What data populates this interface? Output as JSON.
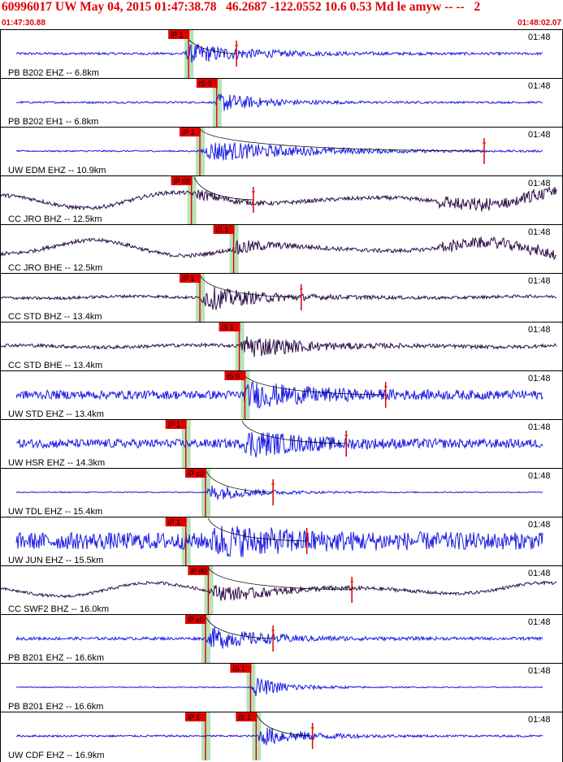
{
  "header": {
    "title": "60996017 UW May 04, 2015 01:47:38.78   46.2687 -122.0552 10.6 0.53 Md le amyw -- --   2",
    "start_time": "01:47:30.88",
    "end_time": "01:48:02.07"
  },
  "colors": {
    "header_text": "#e00000",
    "trace_blue": "#1a1ae6",
    "trace_purple": "#2e0f4a",
    "pick": "#e00000",
    "pick_window": "#9fd89f",
    "separator": "#000000"
  },
  "chart_data": {
    "type": "seismogram",
    "x_range": [
      "01:47:30.88",
      "01:48:02.07"
    ],
    "minute_label": "01:48",
    "traces": [
      {
        "label": "PB B202 EHZ -- 6.8km",
        "color": "blue",
        "picks": [
          {
            "label": "iP 1",
            "kind": "P",
            "t": 0.335
          }
        ],
        "coda_end": 0.42,
        "arrival": 0.325,
        "duration": 0.35,
        "amp": 0.45,
        "noise": 0.05,
        "lf": 0,
        "hf": 0
      },
      {
        "label": "PB B202 EH1 -- 6.8km",
        "color": "blue",
        "picks": [
          {
            "label": "iS 0",
            "kind": "S",
            "t": 0.385
          }
        ],
        "coda_end": null,
        "arrival": 0.38,
        "duration": 0.25,
        "amp": 0.45,
        "noise": 0.04,
        "lf": 0,
        "hf": 0
      },
      {
        "label": "UW EDM EHZ -- 10.9km",
        "color": "blue",
        "picks": [
          {
            "label": "iP 1",
            "kind": "P",
            "t": 0.355
          }
        ],
        "coda_end": 0.86,
        "arrival": 0.355,
        "duration": 0.5,
        "amp": 0.5,
        "noise": 0.03,
        "lf": 0,
        "hf": 0
      },
      {
        "label": "CC JRO BHZ -- 12.5km",
        "color": "purple",
        "picks": [
          {
            "label": "iP c0",
            "kind": "P",
            "t": 0.34
          }
        ],
        "coda_end": 0.45,
        "arrival": 0.345,
        "duration": 0.15,
        "amp": 0.2,
        "noise": 0.08,
        "lf": 0.35,
        "hf": 0.25
      },
      {
        "label": "CC JRO BHE -- 12.5km",
        "color": "purple",
        "picks": [
          {
            "label": "iS 1",
            "kind": "S",
            "t": 0.415
          }
        ],
        "coda_end": null,
        "arrival": 0.415,
        "duration": 0.15,
        "amp": 0.35,
        "noise": 0.08,
        "lf": 0.35,
        "hf": 0.2
      },
      {
        "label": "CC STD BHZ -- 13.4km",
        "color": "purple",
        "picks": [
          {
            "label": "iP 1",
            "kind": "P",
            "t": 0.355
          }
        ],
        "coda_end": 0.535,
        "arrival": 0.355,
        "duration": 0.3,
        "amp": 0.55,
        "noise": 0.06,
        "lf": 0.05,
        "hf": 0
      },
      {
        "label": "CC STD BHE -- 13.4km",
        "color": "purple",
        "picks": [
          {
            "label": "iS 1",
            "kind": "S",
            "t": 0.425
          }
        ],
        "coda_end": null,
        "arrival": 0.425,
        "duration": 0.3,
        "amp": 0.55,
        "noise": 0.07,
        "lf": 0.05,
        "hf": 0
      },
      {
        "label": "UW STD EHZ -- 13.4km",
        "color": "blue",
        "picks": [
          {
            "label": "iS 0",
            "kind": "S",
            "t": 0.435
          }
        ],
        "coda_end": 0.685,
        "arrival": 0.43,
        "duration": 0.35,
        "amp": 0.5,
        "noise": 0.18,
        "lf": 0,
        "hf": 0
      },
      {
        "label": "UW HSR EHZ -- 14.3km",
        "color": "blue",
        "picks": [
          {
            "label": "iP 1",
            "kind": "P",
            "t": 0.33
          }
        ],
        "coda_end": 0.615,
        "arrival": 0.43,
        "duration": 0.3,
        "amp": 0.55,
        "noise": 0.18,
        "lf": 0,
        "hf": 0
      },
      {
        "label": "UW TDL EHZ -- 15.4km",
        "color": "blue",
        "picks": [
          {
            "label": "iP c0",
            "kind": "P",
            "t": 0.365
          }
        ],
        "coda_end": 0.485,
        "arrival": 0.365,
        "duration": 0.25,
        "amp": 0.4,
        "noise": 0.02,
        "lf": 0,
        "hf": 0
      },
      {
        "label": "UW JUN EHZ -- 15.5km",
        "color": "blue",
        "picks": [
          {
            "label": "iP 1",
            "kind": "P",
            "t": 0.33
          }
        ],
        "coda_end": 0.545,
        "arrival": 0.37,
        "duration": 0.4,
        "amp": 0.5,
        "noise": 0.35,
        "lf": 0,
        "hf": 0
      },
      {
        "label": "CC SWF2 BHZ -- 16.0km",
        "color": "purple",
        "picks": [
          {
            "label": "iP d0",
            "kind": "P",
            "t": 0.37
          }
        ],
        "coda_end": 0.625,
        "arrival": 0.37,
        "duration": 0.35,
        "amp": 0.35,
        "noise": 0.06,
        "lf": 0.3,
        "hf": 0
      },
      {
        "label": "PB B201 EHZ -- 16.6km",
        "color": "blue",
        "picks": [
          {
            "label": "iP c0",
            "kind": "P",
            "t": 0.365
          }
        ],
        "coda_end": 0.485,
        "arrival": 0.365,
        "duration": 0.3,
        "amp": 0.5,
        "noise": 0.06,
        "lf": 0,
        "hf": 0
      },
      {
        "label": "PB B201 EH2 -- 16.6km",
        "color": "blue",
        "picks": [
          {
            "label": "iS 1",
            "kind": "S",
            "t": 0.445
          }
        ],
        "coda_end": null,
        "arrival": 0.445,
        "duration": 0.2,
        "amp": 0.45,
        "noise": 0.02,
        "lf": 0,
        "hf": 0
      },
      {
        "label": "UW CDF EHZ -- 16.9km",
        "color": "blue",
        "picks": [
          {
            "label": "iP 1",
            "kind": "P",
            "t": 0.365
          },
          {
            "label": "iS 1",
            "kind": "S",
            "t": 0.455
          }
        ],
        "coda_end": 0.555,
        "arrival": 0.455,
        "duration": 0.25,
        "amp": 0.45,
        "noise": 0.04,
        "lf": 0,
        "hf": 0
      }
    ]
  }
}
